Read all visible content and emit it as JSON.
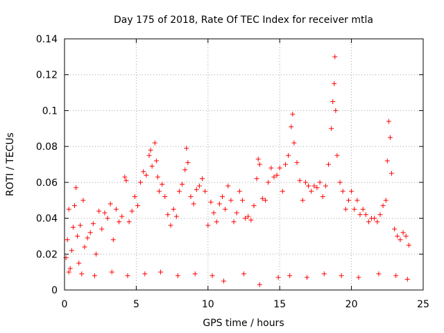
{
  "chart_data": {
    "type": "scatter",
    "title": "Day 175 of 2018, Rate Of TEC Index for receiver mtla",
    "xlabel": "GPS time / hours",
    "ylabel": "ROTI / TECUs",
    "xlim": [
      0,
      25
    ],
    "ylim": [
      0,
      0.14
    ],
    "x_ticks": [
      0,
      5,
      10,
      15,
      20,
      25
    ],
    "x_tick_labels": [
      "0",
      "5",
      "10",
      "15",
      "20",
      "25"
    ],
    "y_ticks": [
      0,
      0.02,
      0.04,
      0.06,
      0.08,
      0.1,
      0.12,
      0.14
    ],
    "y_tick_labels": [
      "0",
      "0.02",
      "0.04",
      "0.06",
      "0.08",
      "0.1",
      "0.12",
      "0.14"
    ],
    "grid": true,
    "marker": "+",
    "color": "#ff0000",
    "series": [
      {
        "name": "ROTI",
        "points": [
          [
            0.1,
            0.018
          ],
          [
            0.2,
            0.028
          ],
          [
            0.3,
            0.045
          ],
          [
            0.4,
            0.012
          ],
          [
            0.5,
            0.022
          ],
          [
            0.6,
            0.035
          ],
          [
            0.7,
            0.047
          ],
          [
            0.8,
            0.057
          ],
          [
            0.9,
            0.03
          ],
          [
            1.0,
            0.015
          ],
          [
            1.1,
            0.036
          ],
          [
            1.3,
            0.05
          ],
          [
            1.4,
            0.024
          ],
          [
            1.6,
            0.029
          ],
          [
            1.8,
            0.032
          ],
          [
            2.0,
            0.037
          ],
          [
            2.2,
            0.02
          ],
          [
            2.4,
            0.044
          ],
          [
            2.6,
            0.034
          ],
          [
            2.8,
            0.043
          ],
          [
            3.0,
            0.04
          ],
          [
            3.2,
            0.048
          ],
          [
            3.4,
            0.028
          ],
          [
            3.6,
            0.045
          ],
          [
            3.8,
            0.038
          ],
          [
            4.0,
            0.041
          ],
          [
            4.2,
            0.063
          ],
          [
            4.3,
            0.061
          ],
          [
            4.5,
            0.038
          ],
          [
            4.7,
            0.044
          ],
          [
            4.9,
            0.052
          ],
          [
            5.1,
            0.047
          ],
          [
            5.3,
            0.06
          ],
          [
            5.5,
            0.066
          ],
          [
            5.7,
            0.064
          ],
          [
            5.9,
            0.075
          ],
          [
            6.0,
            0.078
          ],
          [
            6.1,
            0.069
          ],
          [
            6.3,
            0.082
          ],
          [
            6.4,
            0.072
          ],
          [
            6.5,
            0.063
          ],
          [
            6.6,
            0.055
          ],
          [
            6.8,
            0.059
          ],
          [
            7.0,
            0.052
          ],
          [
            7.2,
            0.042
          ],
          [
            7.4,
            0.036
          ],
          [
            7.6,
            0.045
          ],
          [
            7.8,
            0.041
          ],
          [
            8.0,
            0.055
          ],
          [
            8.2,
            0.059
          ],
          [
            8.4,
            0.067
          ],
          [
            8.5,
            0.079
          ],
          [
            8.6,
            0.071
          ],
          [
            8.8,
            0.052
          ],
          [
            9.0,
            0.048
          ],
          [
            9.2,
            0.056
          ],
          [
            9.4,
            0.058
          ],
          [
            9.6,
            0.062
          ],
          [
            9.8,
            0.055
          ],
          [
            10.0,
            0.036
          ],
          [
            10.2,
            0.049
          ],
          [
            10.4,
            0.043
          ],
          [
            10.6,
            0.038
          ],
          [
            10.8,
            0.048
          ],
          [
            11.0,
            0.052
          ],
          [
            11.2,
            0.045
          ],
          [
            11.4,
            0.058
          ],
          [
            11.6,
            0.05
          ],
          [
            11.8,
            0.038
          ],
          [
            12.0,
            0.043
          ],
          [
            12.2,
            0.055
          ],
          [
            12.4,
            0.05
          ],
          [
            12.6,
            0.04
          ],
          [
            12.8,
            0.041
          ],
          [
            13.0,
            0.039
          ],
          [
            13.2,
            0.047
          ],
          [
            13.4,
            0.062
          ],
          [
            13.5,
            0.073
          ],
          [
            13.6,
            0.07
          ],
          [
            13.8,
            0.051
          ],
          [
            14.0,
            0.05
          ],
          [
            14.2,
            0.06
          ],
          [
            14.4,
            0.068
          ],
          [
            14.6,
            0.063
          ],
          [
            14.8,
            0.064
          ],
          [
            15.0,
            0.068
          ],
          [
            15.2,
            0.055
          ],
          [
            15.4,
            0.07
          ],
          [
            15.6,
            0.075
          ],
          [
            15.8,
            0.091
          ],
          [
            15.9,
            0.098
          ],
          [
            16.0,
            0.082
          ],
          [
            16.2,
            0.071
          ],
          [
            16.4,
            0.061
          ],
          [
            16.6,
            0.05
          ],
          [
            16.8,
            0.06
          ],
          [
            17.0,
            0.058
          ],
          [
            17.2,
            0.055
          ],
          [
            17.4,
            0.058
          ],
          [
            17.6,
            0.057
          ],
          [
            17.8,
            0.06
          ],
          [
            18.0,
            0.052
          ],
          [
            18.2,
            0.058
          ],
          [
            18.4,
            0.07
          ],
          [
            18.6,
            0.09
          ],
          [
            18.7,
            0.105
          ],
          [
            18.8,
            0.115
          ],
          [
            18.85,
            0.13
          ],
          [
            18.9,
            0.1
          ],
          [
            19.0,
            0.075
          ],
          [
            19.2,
            0.06
          ],
          [
            19.4,
            0.055
          ],
          [
            19.6,
            0.045
          ],
          [
            19.8,
            0.05
          ],
          [
            20.0,
            0.055
          ],
          [
            20.2,
            0.045
          ],
          [
            20.4,
            0.05
          ],
          [
            20.6,
            0.042
          ],
          [
            20.8,
            0.045
          ],
          [
            21.0,
            0.042
          ],
          [
            21.2,
            0.038
          ],
          [
            21.4,
            0.04
          ],
          [
            21.6,
            0.04
          ],
          [
            21.8,
            0.038
          ],
          [
            22.0,
            0.042
          ],
          [
            22.2,
            0.047
          ],
          [
            22.4,
            0.05
          ],
          [
            22.5,
            0.072
          ],
          [
            22.6,
            0.094
          ],
          [
            22.7,
            0.085
          ],
          [
            22.8,
            0.065
          ],
          [
            23.0,
            0.034
          ],
          [
            23.2,
            0.03
          ],
          [
            23.4,
            0.028
          ],
          [
            23.6,
            0.032
          ],
          [
            23.8,
            0.03
          ],
          [
            24.0,
            0.025
          ],
          [
            0.3,
            0.01
          ],
          [
            1.2,
            0.009
          ],
          [
            2.1,
            0.008
          ],
          [
            3.3,
            0.01
          ],
          [
            4.4,
            0.008
          ],
          [
            5.6,
            0.009
          ],
          [
            6.7,
            0.01
          ],
          [
            7.9,
            0.008
          ],
          [
            9.1,
            0.009
          ],
          [
            10.3,
            0.008
          ],
          [
            11.1,
            0.005
          ],
          [
            12.5,
            0.009
          ],
          [
            13.6,
            0.003
          ],
          [
            14.9,
            0.007
          ],
          [
            15.7,
            0.008
          ],
          [
            16.9,
            0.007
          ],
          [
            18.1,
            0.009
          ],
          [
            19.3,
            0.008
          ],
          [
            20.5,
            0.007
          ],
          [
            21.9,
            0.009
          ],
          [
            23.1,
            0.008
          ],
          [
            23.9,
            0.006
          ]
        ]
      }
    ]
  }
}
